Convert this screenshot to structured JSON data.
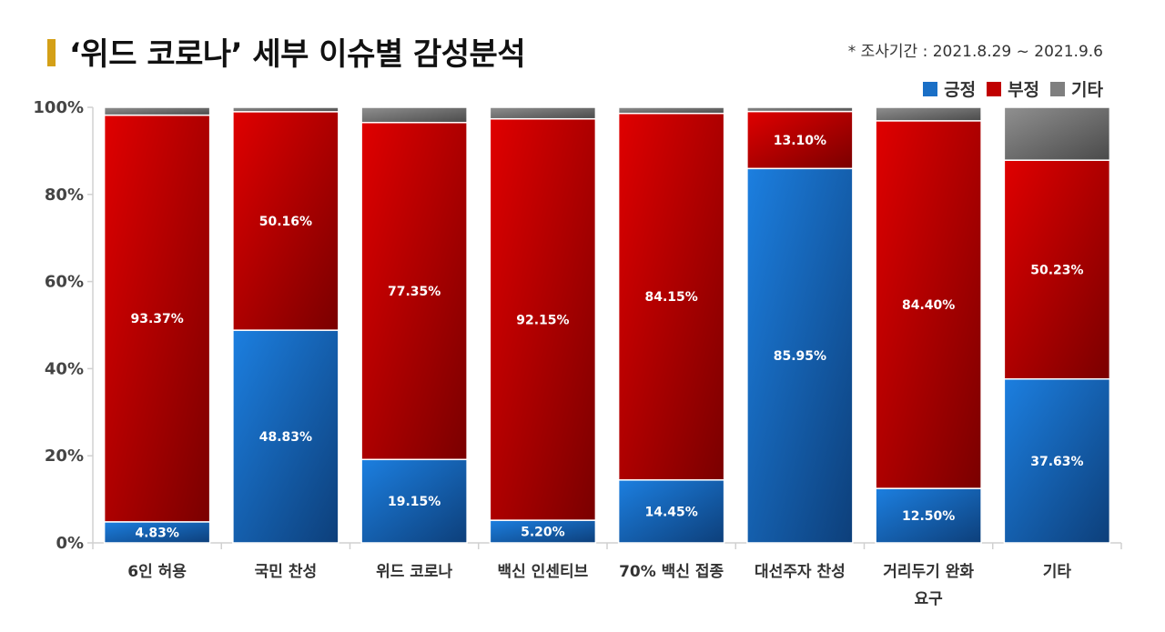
{
  "header": {
    "title": "‘위드 코로나’ 세부 이슈별 감성분석",
    "note": "* 조사기간 : 2021.8.29 ~ 2021.9.6"
  },
  "legend": [
    {
      "name": "긍정",
      "color": "#1a6fc6"
    },
    {
      "name": "부정",
      "color": "#c00000"
    },
    {
      "name": "기타",
      "color": "#7f7f7f"
    }
  ],
  "chart_data": {
    "type": "bar",
    "stacked": true,
    "categories": [
      [
        "6인 허용"
      ],
      [
        "국민 찬성"
      ],
      [
        "위드 코로나"
      ],
      [
        "백신 인센티브"
      ],
      [
        "70% 백신 접종"
      ],
      [
        "대선주자 찬성"
      ],
      [
        "거리두기 완화",
        "요구"
      ],
      [
        "기타"
      ]
    ],
    "series": [
      {
        "name": "긍정",
        "values": [
          4.83,
          48.83,
          19.15,
          5.2,
          14.45,
          85.95,
          12.5,
          37.63
        ],
        "labels": [
          "4.83%",
          "48.83%",
          "19.15%",
          "5.20%",
          "14.45%",
          "85.95%",
          "12.50%",
          "37.63%"
        ]
      },
      {
        "name": "부정",
        "values": [
          93.37,
          50.16,
          77.35,
          92.15,
          84.15,
          13.1,
          84.4,
          50.23
        ],
        "labels": [
          "93.37%",
          "50.16%",
          "77.35%",
          "92.15%",
          "84.15%",
          "13.10%",
          "84.40%",
          "50.23%"
        ]
      },
      {
        "name": "기타",
        "values": [
          1.8,
          1.01,
          3.5,
          2.65,
          1.4,
          0.95,
          3.1,
          12.14
        ]
      }
    ],
    "ylim": [
      0,
      100
    ],
    "yticks": [
      "0%",
      "20%",
      "40%",
      "60%",
      "80%",
      "100%"
    ],
    "grid": false,
    "legend_position": "top-right"
  }
}
